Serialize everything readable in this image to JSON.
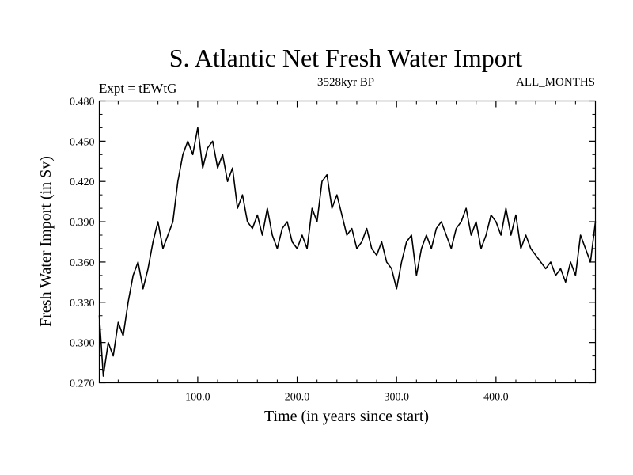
{
  "chart_data": {
    "type": "line",
    "title": "S. Atlantic Net Fresh Water Import",
    "subtitle_left": "Expt = tEWtG",
    "subtitle_center": "3528kyr BP",
    "subtitle_right": "ALL_MONTHS",
    "xlabel": "Time (in years since start)",
    "ylabel": "Fresh Water Import (in Sv)",
    "xlim": [
      1,
      500
    ],
    "ylim": [
      0.27,
      0.48
    ],
    "x_ticks": [
      100,
      200,
      300,
      400
    ],
    "x_tick_labels": [
      "100.0",
      "200.0",
      "300.0",
      "400.0"
    ],
    "y_ticks": [
      0.27,
      0.3,
      0.33,
      0.36,
      0.39,
      0.42,
      0.45,
      0.48
    ],
    "y_tick_labels": [
      "0.270",
      "0.300",
      "0.330",
      "0.360",
      "0.390",
      "0.420",
      "0.450",
      "0.480"
    ],
    "grid": false,
    "series": [
      {
        "name": "Fresh Water Import",
        "x": [
          1,
          5,
          10,
          15,
          20,
          25,
          30,
          35,
          40,
          45,
          50,
          55,
          60,
          65,
          70,
          75,
          80,
          85,
          90,
          95,
          100,
          105,
          110,
          115,
          120,
          125,
          130,
          135,
          140,
          145,
          150,
          155,
          160,
          165,
          170,
          175,
          180,
          185,
          190,
          195,
          200,
          205,
          210,
          215,
          220,
          225,
          230,
          235,
          240,
          245,
          250,
          255,
          260,
          265,
          270,
          275,
          280,
          285,
          290,
          295,
          300,
          305,
          310,
          315,
          320,
          325,
          330,
          335,
          340,
          345,
          350,
          355,
          360,
          365,
          370,
          375,
          380,
          385,
          390,
          395,
          400,
          405,
          410,
          415,
          420,
          425,
          430,
          435,
          440,
          445,
          450,
          455,
          460,
          465,
          470,
          475,
          480,
          485,
          490,
          495,
          500
        ],
        "values": [
          0.32,
          0.275,
          0.3,
          0.29,
          0.315,
          0.305,
          0.33,
          0.35,
          0.36,
          0.34,
          0.355,
          0.375,
          0.39,
          0.37,
          0.38,
          0.39,
          0.42,
          0.44,
          0.45,
          0.44,
          0.46,
          0.43,
          0.445,
          0.45,
          0.43,
          0.44,
          0.42,
          0.43,
          0.4,
          0.41,
          0.39,
          0.385,
          0.395,
          0.38,
          0.4,
          0.38,
          0.37,
          0.385,
          0.39,
          0.375,
          0.37,
          0.38,
          0.37,
          0.4,
          0.39,
          0.42,
          0.425,
          0.4,
          0.41,
          0.395,
          0.38,
          0.385,
          0.37,
          0.375,
          0.385,
          0.37,
          0.365,
          0.375,
          0.36,
          0.355,
          0.34,
          0.36,
          0.375,
          0.38,
          0.35,
          0.37,
          0.38,
          0.37,
          0.385,
          0.39,
          0.38,
          0.37,
          0.385,
          0.39,
          0.4,
          0.38,
          0.39,
          0.37,
          0.38,
          0.395,
          0.39,
          0.38,
          0.4,
          0.38,
          0.395,
          0.37,
          0.38,
          0.37,
          0.365,
          0.36,
          0.355,
          0.36,
          0.35,
          0.355,
          0.345,
          0.36,
          0.35,
          0.38,
          0.37,
          0.36,
          0.39
        ]
      }
    ]
  }
}
